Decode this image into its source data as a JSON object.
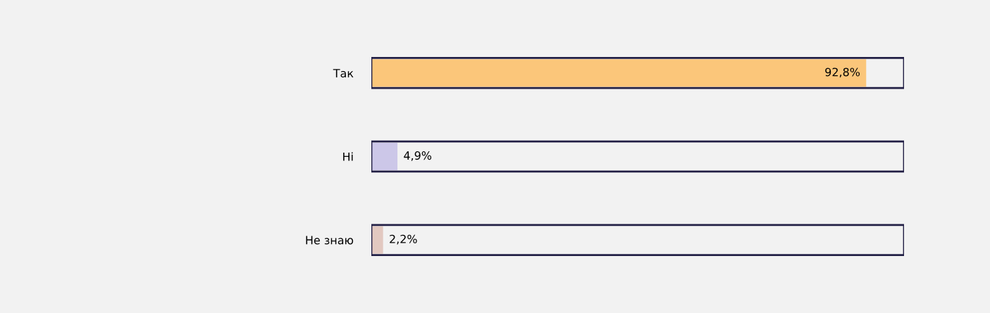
{
  "chart_data": {
    "type": "bar",
    "orientation": "horizontal",
    "categories": [
      "Так",
      "Ні",
      "Не знаю"
    ],
    "values": [
      92.8,
      4.9,
      2.2
    ],
    "colors": [
      "#fbc67a",
      "#ccc7e8",
      "#e2c8c0"
    ],
    "value_labels": [
      "92,8%",
      "4,9%",
      "2,2%"
    ],
    "grid": false,
    "legend": false
  }
}
